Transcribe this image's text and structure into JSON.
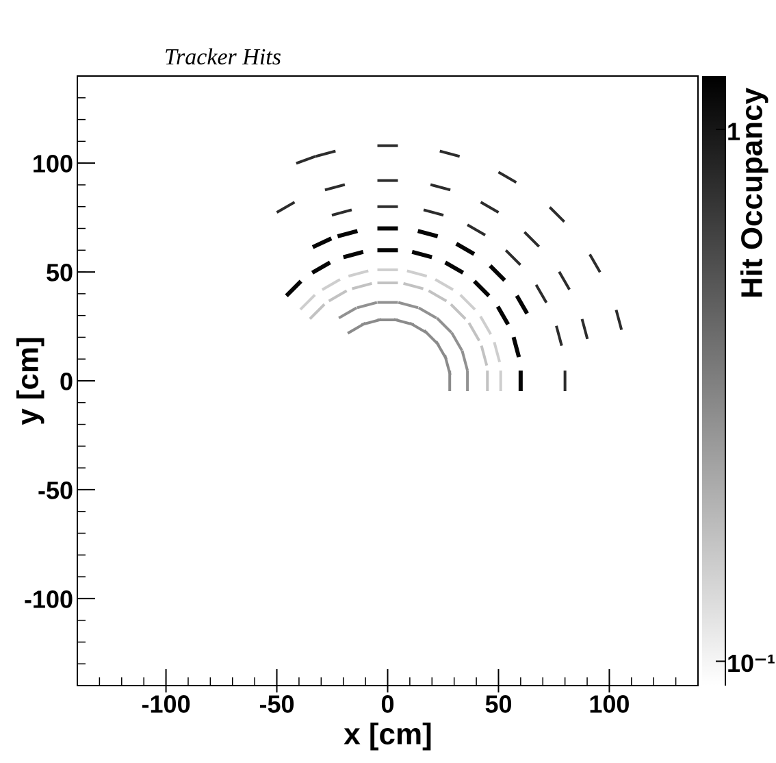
{
  "chart_data": {
    "type": "hit-map",
    "title": "Tracker Hits",
    "x_label": "x [cm]",
    "y_label": "y [cm]",
    "z_label": "Hit Occupancy",
    "xlim": [
      -140,
      140
    ],
    "ylim": [
      -140,
      140
    ],
    "xticks": [
      -100,
      -50,
      0,
      50,
      100
    ],
    "yticks": [
      -100,
      -50,
      0,
      50,
      100
    ],
    "zlim": [
      0.09,
      1.26
    ],
    "zticks": [
      1,
      {
        "value": 0.1,
        "label": "10⁻¹"
      }
    ],
    "z_log": true,
    "colormap": [
      "#ffffff",
      "#000000"
    ],
    "series": [
      {
        "x": [
          28,
          27,
          24.2,
          19.8,
          14,
          7.3,
          0,
          -7.3,
          -14
        ],
        "y": [
          0,
          7.3,
          14,
          19.8,
          24.2,
          27,
          28,
          27,
          24.2
        ],
        "values": [
          0.3,
          0.3,
          0.3,
          0.3,
          0.3,
          0.3,
          0.3,
          0.3,
          0.3
        ]
      },
      {
        "x": [
          36,
          34.8,
          31.2,
          25.5,
          18,
          9.3,
          0,
          -9.3,
          -18
        ],
        "y": [
          0,
          9.3,
          18,
          25.5,
          31.2,
          34.8,
          36,
          34.8,
          31.2
        ],
        "values": [
          0.28,
          0.28,
          0.28,
          0.28,
          0.28,
          0.28,
          0.28,
          0.28,
          0.28
        ]
      },
      {
        "x": [
          45,
          43.5,
          39,
          31.8,
          22.5,
          11.6,
          0,
          -11.6,
          -22.5,
          -31.8
        ],
        "y": [
          0,
          11.6,
          22.5,
          31.8,
          39,
          43.5,
          45,
          43.5,
          39,
          31.8
        ],
        "values": [
          0.17,
          0.17,
          0.17,
          0.17,
          0.17,
          0.17,
          0.17,
          0.17,
          0.17,
          0.17
        ]
      },
      {
        "x": [
          51,
          49.3,
          44.2,
          36.1,
          25.5,
          13.2,
          0,
          -13.2,
          -25.5,
          -36.1
        ],
        "y": [
          0,
          13.2,
          25.5,
          36.1,
          44.2,
          49.3,
          51,
          49.3,
          44.2,
          36.1
        ],
        "values": [
          0.15,
          0.15,
          0.15,
          0.15,
          0.15,
          0.15,
          0.15,
          0.15,
          0.15,
          0.15
        ]
      },
      {
        "x": [
          60,
          58,
          52,
          42.4,
          30,
          15.5,
          0,
          -15.5,
          -30,
          -42.4
        ],
        "y": [
          0,
          15.5,
          30,
          42.4,
          52,
          58,
          60,
          58,
          52,
          42.4
        ],
        "values": [
          1.2,
          1.2,
          1.2,
          1.2,
          1.2,
          1.2,
          1.2,
          1.2,
          1.2,
          1.2
        ]
      },
      {
        "x": [
          60.6,
          49.5,
          35,
          18.1,
          0,
          -18.1,
          -29.6
        ],
        "y": [
          35,
          49.5,
          60.6,
          67.6,
          70,
          67.6,
          63.4
        ],
        "values": [
          1.2,
          1.2,
          1.2,
          1.2,
          1.2,
          1.2,
          1.2
        ]
      },
      {
        "x": [
          80,
          77.3,
          69.3,
          56.6,
          40,
          20.7,
          0,
          -20.7
        ],
        "y": [
          0,
          20.7,
          40,
          56.6,
          69.3,
          77.3,
          80,
          77.3
        ],
        "values": [
          0.8,
          0.8,
          0.8,
          0.8,
          0.8,
          0.8,
          0.8,
          0.8
        ]
      },
      {
        "x": [
          88.9,
          79.7,
          65,
          46,
          23.8,
          0,
          -23.8,
          -46
        ],
        "y": [
          23.8,
          46,
          65,
          79.7,
          88.9,
          92,
          88.9,
          79.7
        ],
        "values": [
          0.8,
          0.8,
          0.8,
          0.8,
          0.8,
          0.8,
          0.8,
          0.8
        ]
      },
      {
        "x": [
          104.3,
          93.5,
          76.4,
          54,
          28,
          0,
          -28,
          -36.9
        ],
        "y": [
          28,
          54,
          76.4,
          93.5,
          104.3,
          108,
          104.3,
          101.5
        ],
        "values": [
          0.8,
          0.8,
          0.8,
          0.8,
          0.8,
          0.8,
          0.8,
          0.8
        ]
      }
    ]
  }
}
